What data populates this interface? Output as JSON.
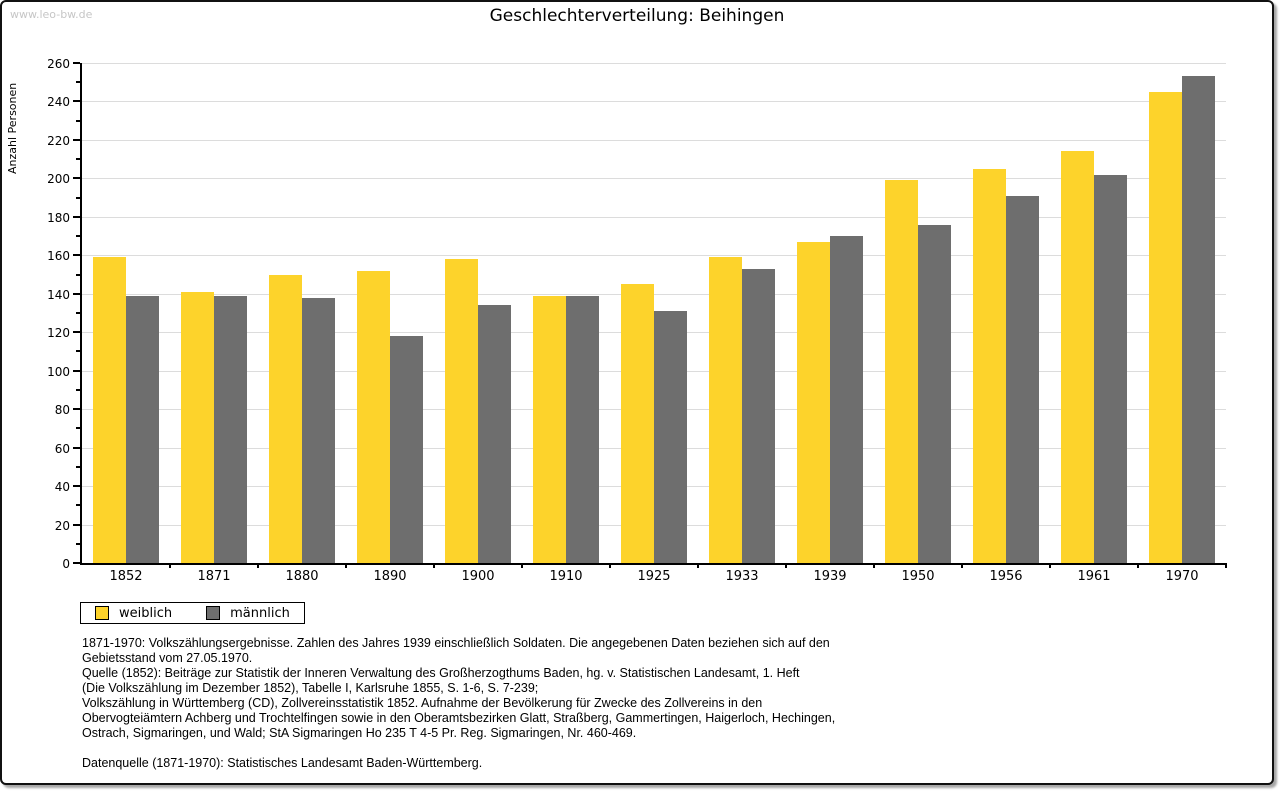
{
  "watermark": "www.leo-bw.de",
  "title": "Geschlechterverteilung: Beihingen",
  "chart_data": {
    "type": "bar",
    "title": "Geschlechterverteilung: Beihingen",
    "ylabel": "Anzahl Personen",
    "xlabel": "",
    "ylim": [
      0,
      260
    ],
    "ytick_major_step": 20,
    "ytick_minor_step": 10,
    "grid": true,
    "legend_position": "bottom-left",
    "categories": [
      "1852",
      "1871",
      "1880",
      "1890",
      "1900",
      "1910",
      "1925",
      "1933",
      "1939",
      "1950",
      "1956",
      "1961",
      "1970"
    ],
    "series": [
      {
        "name": "weiblich",
        "color": "#FDD32B",
        "values": [
          159,
          141,
          150,
          152,
          158,
          139,
          145,
          159,
          167,
          199,
          205,
          214,
          245
        ]
      },
      {
        "name": "männlich",
        "color": "#6E6E6E",
        "values": [
          139,
          139,
          138,
          118,
          134,
          139,
          131,
          153,
          170,
          176,
          191,
          202,
          253
        ]
      }
    ]
  },
  "legend": {
    "items": [
      {
        "label": "weiblich",
        "color": "#FDD32B"
      },
      {
        "label": "männlich",
        "color": "#6E6E6E"
      }
    ]
  },
  "footnotes": [
    "1871-1970: Volkszählungsergebnisse. Zahlen des Jahres 1939 einschließlich Soldaten. Die angegebenen Daten beziehen sich auf den",
    "Gebietsstand vom 27.05.1970.",
    "Quelle (1852): Beiträge zur Statistik der Inneren Verwaltung des Großherzogthums Baden, hg. v. Statistischen Landesamt, 1. Heft",
    "(Die Volkszählung im Dezember 1852), Tabelle I, Karlsruhe 1855, S. 1-6, S. 7-239;",
    "Volkszählung in Württemberg (CD), Zollvereinsstatistik 1852. Aufnahme der Bevölkerung für Zwecke des Zollvereins in den",
    "Obervogteiämtern Achberg und Trochtelfingen sowie in den Oberamtsbezirken Glatt, Straßberg, Gammertingen, Haigerloch, Hechingen,",
    "Ostrach, Sigmaringen, und Wald; StA Sigmaringen Ho 235 T 4-5 Pr. Reg. Sigmaringen, Nr. 460-469.",
    "",
    "Datenquelle (1871-1970): Statistisches Landesamt Baden-Württemberg."
  ],
  "colors": {
    "gridline": "#dcdcdc",
    "axis": "#000000",
    "watermark": "#c6c6c6",
    "panel_border": "#111111"
  }
}
